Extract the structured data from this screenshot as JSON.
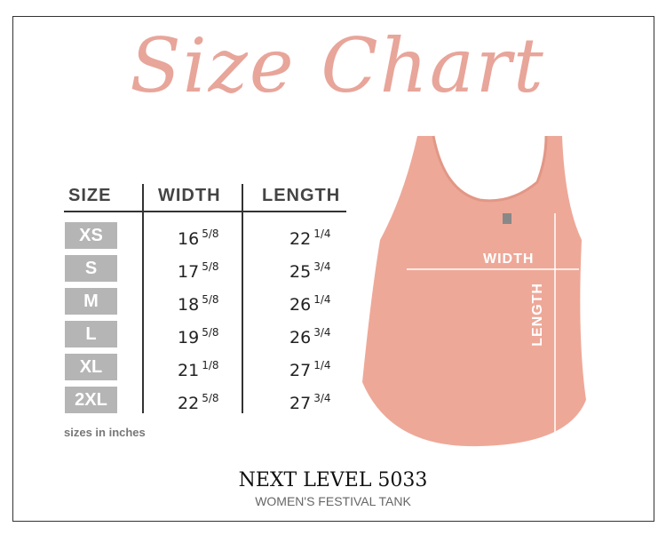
{
  "title": "Size Chart",
  "table": {
    "headers": [
      "SIZE",
      "WIDTH",
      "LENGTH"
    ],
    "rows": [
      {
        "size": "XS",
        "width": "16",
        "width_frac": "5/8",
        "length": "22",
        "length_frac": "1/4"
      },
      {
        "size": "S",
        "width": "17",
        "width_frac": "5/8",
        "length": "25",
        "length_frac": "3/4"
      },
      {
        "size": "M",
        "width": "18",
        "width_frac": "5/8",
        "length": "26",
        "length_frac": "1/4"
      },
      {
        "size": "L",
        "width": "19",
        "width_frac": "5/8",
        "length": "26",
        "length_frac": "3/4"
      },
      {
        "size": "XL",
        "width": "21",
        "width_frac": "1/8",
        "length": "27",
        "length_frac": "1/4"
      },
      {
        "size": "2XL",
        "width": "22",
        "width_frac": "5/8",
        "length": "27",
        "length_frac": "3/4"
      }
    ],
    "note": "sizes in inches"
  },
  "garment": {
    "width_label": "WIDTH",
    "length_label": "LENGTH",
    "color": "#eea898"
  },
  "brand": "NEXT LEVEL 5033",
  "product": "WOMEN'S FESTIVAL TANK",
  "colors": {
    "title": "#e8a59a",
    "size_box": "#b5b5b5"
  }
}
